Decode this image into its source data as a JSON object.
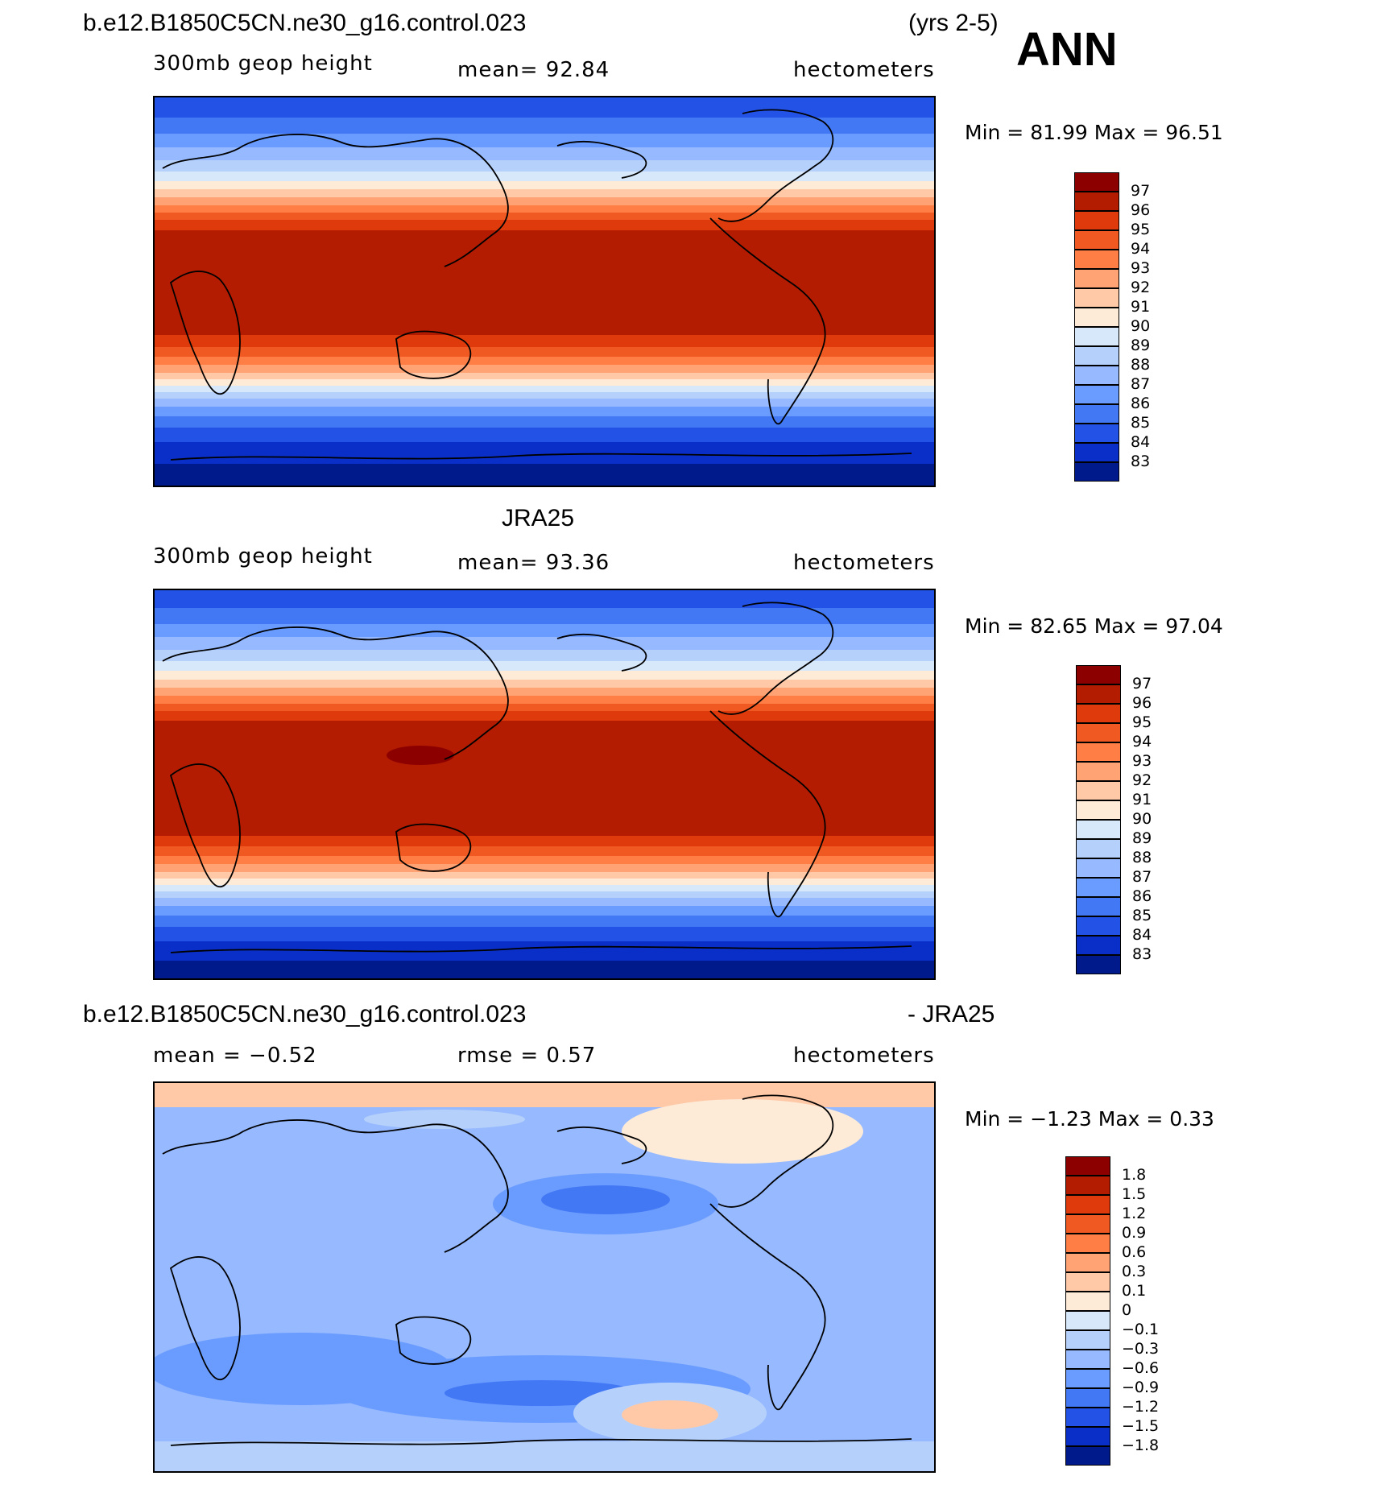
{
  "header": {
    "case_name": "b.e12.B1850C5CN.ne30_g16.control.023",
    "years": "(yrs 2-5)",
    "season": "ANN"
  },
  "panels": [
    {
      "id": "model",
      "left_label": "300mb geop height",
      "center_label": "mean=   92.84",
      "units": "hectometers",
      "minmax": "Min =   81.99 Max =   96.51",
      "levels": [
        "97",
        "96",
        "95",
        "94",
        "93",
        "92",
        "91",
        "90",
        "89",
        "88",
        "87",
        "86",
        "85",
        "84",
        "83"
      ],
      "colors": [
        "#8c0000",
        "#b31c00",
        "#de3a0c",
        "#f05a22",
        "#ff7e45",
        "#ffa274",
        "#ffc9a8",
        "#fdebd8",
        "#d7e8fb",
        "#b5d1fb",
        "#96b9ff",
        "#6a9cff",
        "#4378f5",
        "#2352e6",
        "#0a2fc8",
        "#001a8c"
      ]
    },
    {
      "id": "obs",
      "obs_title": "JRA25",
      "left_label": "300mb geop height",
      "center_label": "mean=   93.36",
      "units": "hectometers",
      "minmax": "Min =   82.65 Max =   97.04",
      "levels": [
        "97",
        "96",
        "95",
        "94",
        "93",
        "92",
        "91",
        "90",
        "89",
        "88",
        "87",
        "86",
        "85",
        "84",
        "83"
      ],
      "colors": [
        "#8c0000",
        "#b31c00",
        "#de3a0c",
        "#f05a22",
        "#ff7e45",
        "#ffa274",
        "#ffc9a8",
        "#fdebd8",
        "#d7e8fb",
        "#b5d1fb",
        "#96b9ff",
        "#6a9cff",
        "#4378f5",
        "#2352e6",
        "#0a2fc8",
        "#001a8c"
      ]
    },
    {
      "id": "diff",
      "diff_title_left": "b.e12.B1850C5CN.ne30_g16.control.023",
      "diff_title_right": "- JRA25",
      "left_label": "mean =   −0.52",
      "center_label": "rmse =    0.57",
      "units": "hectometers",
      "minmax": "Min =   −1.23 Max =    0.33",
      "levels": [
        "1.8",
        "1.5",
        "1.2",
        "0.9",
        "0.6",
        "0.3",
        "0.1",
        "0",
        "−0.1",
        "−0.3",
        "−0.6",
        "−0.9",
        "−1.2",
        "−1.5",
        "−1.8"
      ],
      "colors": [
        "#8c0000",
        "#b31c00",
        "#de3a0c",
        "#f05a22",
        "#ff7e45",
        "#ffa274",
        "#ffc9a8",
        "#fdebd8",
        "#d7e8fb",
        "#b5d1fb",
        "#96b9ff",
        "#6a9cff",
        "#4378f5",
        "#2352e6",
        "#0a2fc8",
        "#001a8c"
      ]
    }
  ]
}
